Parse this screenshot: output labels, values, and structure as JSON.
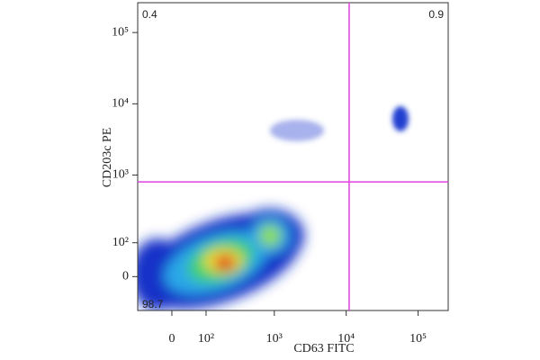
{
  "chart_data": {
    "type": "scatter",
    "x_label": "CD63 FITC",
    "y_label": "CD203c PE",
    "scale": "biexponential",
    "xlim": [
      -100,
      262144
    ],
    "ylim": [
      -100,
      262144
    ],
    "xticks": [
      0,
      {
        "value": 100,
        "label": "10²"
      },
      {
        "value": 1000,
        "label": "10³"
      },
      {
        "value": 10000,
        "label": "10⁴"
      },
      {
        "value": 100000,
        "label": "10⁵"
      }
    ],
    "yticks": [
      0,
      {
        "value": 100,
        "label": "10²"
      },
      {
        "value": 1000,
        "label": "10³"
      },
      {
        "value": 10000,
        "label": "10⁴"
      },
      {
        "value": 100000,
        "label": "10⁵"
      }
    ],
    "gate": {
      "x": 11000,
      "y": 800,
      "color": "#e040e0"
    },
    "quadrants": [
      {
        "corner": "top-left",
        "value": 0.4
      },
      {
        "corner": "top-right",
        "value": 0.9
      },
      {
        "corner": "bottom-left",
        "value": 98.7
      }
    ]
  }
}
